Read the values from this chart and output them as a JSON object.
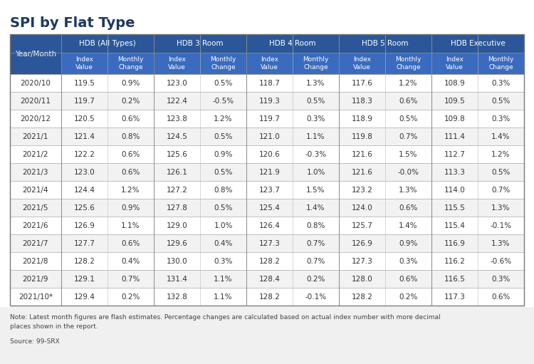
{
  "title": "SPI by Flat Type",
  "note": "Note: Latest month figures are flash estimates. Percentage changes are calculated based on actual index number with more decimal\nplaces shown in the report.",
  "source": "Source: 99-SRX",
  "col_groups": [
    "HDB (All Types)",
    "HDB 3 Room",
    "HDB 4 Room",
    "HDB 5 Room",
    "HDB Executive"
  ],
  "sub_cols": [
    "Index\nValue",
    "Monthly\nChange"
  ],
  "year_months": [
    "2020/10",
    "2020/11",
    "2020/12",
    "2021/1",
    "2021/2",
    "2021/3",
    "2021/4",
    "2021/5",
    "2021/6",
    "2021/7",
    "2021/8",
    "2021/9",
    "2021/10*"
  ],
  "data": [
    [
      "119.5",
      "0.9%",
      "123.0",
      "0.5%",
      "118.7",
      "1.3%",
      "117.6",
      "1.2%",
      "108.9",
      "0.3%"
    ],
    [
      "119.7",
      "0.2%",
      "122.4",
      "-0.5%",
      "119.3",
      "0.5%",
      "118.3",
      "0.6%",
      "109.5",
      "0.5%"
    ],
    [
      "120.5",
      "0.6%",
      "123.8",
      "1.2%",
      "119.7",
      "0.3%",
      "118.9",
      "0.5%",
      "109.8",
      "0.3%"
    ],
    [
      "121.4",
      "0.8%",
      "124.5",
      "0.5%",
      "121.0",
      "1.1%",
      "119.8",
      "0.7%",
      "111.4",
      "1.4%"
    ],
    [
      "122.2",
      "0.6%",
      "125.6",
      "0.9%",
      "120.6",
      "-0.3%",
      "121.6",
      "1.5%",
      "112.7",
      "1.2%"
    ],
    [
      "123.0",
      "0.6%",
      "126.1",
      "0.5%",
      "121.9",
      "1.0%",
      "121.6",
      "-0.0%",
      "113.3",
      "0.5%"
    ],
    [
      "124.4",
      "1.2%",
      "127.2",
      "0.8%",
      "123.7",
      "1.5%",
      "123.2",
      "1.3%",
      "114.0",
      "0.7%"
    ],
    [
      "125.6",
      "0.9%",
      "127.8",
      "0.5%",
      "125.4",
      "1.4%",
      "124.0",
      "0.6%",
      "115.5",
      "1.3%"
    ],
    [
      "126.9",
      "1.1%",
      "129.0",
      "1.0%",
      "126.4",
      "0.8%",
      "125.7",
      "1.4%",
      "115.4",
      "-0.1%"
    ],
    [
      "127.7",
      "0.6%",
      "129.6",
      "0.4%",
      "127.3",
      "0.7%",
      "126.9",
      "0.9%",
      "116.9",
      "1.3%"
    ],
    [
      "128.2",
      "0.4%",
      "130.0",
      "0.3%",
      "128.2",
      "0.7%",
      "127.3",
      "0.3%",
      "116.2",
      "-0.6%"
    ],
    [
      "129.1",
      "0.7%",
      "131.4",
      "1.1%",
      "128.4",
      "0.2%",
      "128.0",
      "0.6%",
      "116.5",
      "0.3%"
    ],
    [
      "129.4",
      "0.2%",
      "132.8",
      "1.1%",
      "128.2",
      "-0.1%",
      "128.2",
      "0.2%",
      "117.3",
      "0.6%"
    ]
  ],
  "header_bg": "#2B579A",
  "header_fg": "#FFFFFF",
  "subheader_bg": "#3A6BBF",
  "subheader_fg": "#FFFFFF",
  "row_even_bg": "#FFFFFF",
  "row_odd_bg": "#F2F2F2",
  "row_fg": "#333333",
  "border_color": "#AAAAAA",
  "title_color": "#1F3864",
  "page_bg": "#FFFFFF",
  "note_bg": "#F0F0F0"
}
